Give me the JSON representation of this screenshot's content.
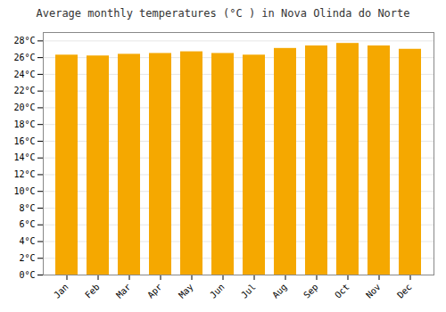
{
  "chart_data": {
    "type": "bar",
    "title": "Average monthly temperatures (°C ) in Nova Olinda do Norte",
    "categories": [
      "Jan",
      "Feb",
      "Mar",
      "Apr",
      "May",
      "Jun",
      "Jul",
      "Aug",
      "Sep",
      "Oct",
      "Nov",
      "Dec"
    ],
    "values": [
      26.3,
      26.2,
      26.4,
      26.5,
      26.7,
      26.5,
      26.3,
      27.1,
      27.4,
      27.7,
      27.4,
      27.0
    ],
    "color": "#F5A800",
    "ylim": [
      0,
      29
    ],
    "yticks": [
      {
        "value": 0,
        "label": "0°C"
      },
      {
        "value": 2,
        "label": "2°C"
      },
      {
        "value": 4,
        "label": "4°C"
      },
      {
        "value": 6,
        "label": "6°C"
      },
      {
        "value": 8,
        "label": "8°C"
      },
      {
        "value": 10,
        "label": "10°C"
      },
      {
        "value": 12,
        "label": "12°C"
      },
      {
        "value": 14,
        "label": "14°C"
      },
      {
        "value": 16,
        "label": "16°C"
      },
      {
        "value": 18,
        "label": "18°C"
      },
      {
        "value": 20,
        "label": "20°C"
      },
      {
        "value": 22,
        "label": "22°C"
      },
      {
        "value": 24,
        "label": "24°C"
      },
      {
        "value": 26,
        "label": "26°C"
      },
      {
        "value": 28,
        "label": "28°C"
      }
    ],
    "grid": true
  }
}
